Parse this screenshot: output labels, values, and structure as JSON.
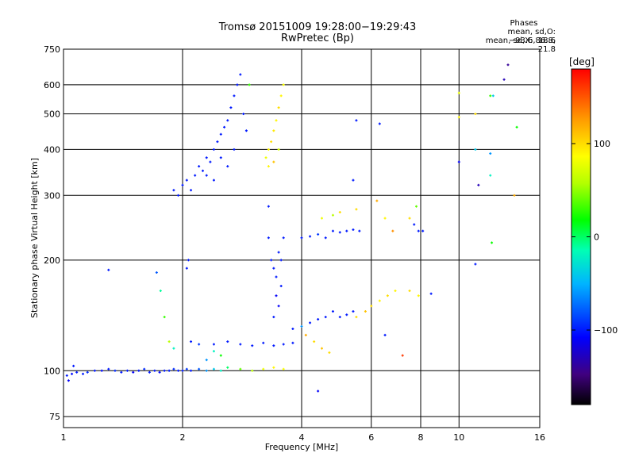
{
  "chart_data": {
    "type": "scatter",
    "title": "Tromsø 20151009 19:28:00−19:29:43",
    "subtitle": "RwPretec (Bp)",
    "xlabel": "Frequency [MHz]",
    "ylabel": "Stationary phase Virtual Height [km]",
    "x_scale": "log",
    "y_scale": "log",
    "xlim": [
      1,
      16
    ],
    "ylim": [
      70,
      750
    ],
    "x_ticks": [
      1,
      2,
      4,
      6,
      8,
      10,
      16
    ],
    "x_tick_labels": [
      "1",
      "2",
      "4",
      "6",
      "8",
      "10",
      "16"
    ],
    "y_ticks": [
      75,
      100,
      200,
      300,
      400,
      500,
      600,
      750
    ],
    "y_tick_labels": [
      "75",
      "100",
      "200",
      "300",
      "400",
      "500",
      "600",
      "750"
    ],
    "grid": true,
    "phase_box": {
      "title": "Phases",
      "line_o": "mean, sd,O: −93.6, 18.6",
      "line_x": "mean, sd,X:  86.8, 21.8"
    },
    "colorbar": {
      "label": "[deg]",
      "range": [
        -180,
        180
      ],
      "ticks": [
        100,
        0,
        -100
      ],
      "tick_labels": [
        "100",
        "0",
        "−100"
      ],
      "colormap": "rainbow"
    },
    "series": [
      {
        "values": [
          {
            "x": 1.02,
            "y": 97,
            "p": -100
          },
          {
            "x": 1.05,
            "y": 98,
            "p": -105
          },
          {
            "x": 1.08,
            "y": 99,
            "p": -100
          },
          {
            "x": 1.12,
            "y": 98,
            "p": -100
          },
          {
            "x": 1.15,
            "y": 99,
            "p": -95
          },
          {
            "x": 1.2,
            "y": 100,
            "p": -100
          },
          {
            "x": 1.25,
            "y": 100,
            "p": -105
          },
          {
            "x": 1.3,
            "y": 101,
            "p": -100
          },
          {
            "x": 1.35,
            "y": 100,
            "p": -95
          },
          {
            "x": 1.4,
            "y": 99,
            "p": -100
          },
          {
            "x": 1.45,
            "y": 100,
            "p": -100
          },
          {
            "x": 1.5,
            "y": 99,
            "p": -110
          },
          {
            "x": 1.55,
            "y": 100,
            "p": -100
          },
          {
            "x": 1.6,
            "y": 101,
            "p": -95
          },
          {
            "x": 1.65,
            "y": 99,
            "p": -100
          },
          {
            "x": 1.7,
            "y": 100,
            "p": -100
          },
          {
            "x": 1.75,
            "y": 99,
            "p": -105
          },
          {
            "x": 1.8,
            "y": 100,
            "p": -100
          },
          {
            "x": 1.85,
            "y": 100,
            "p": -100
          },
          {
            "x": 1.9,
            "y": 101,
            "p": -95
          },
          {
            "x": 1.95,
            "y": 100,
            "p": -100
          },
          {
            "x": 2.0,
            "y": 100,
            "p": -100
          },
          {
            "x": 2.05,
            "y": 101,
            "p": -90
          },
          {
            "x": 2.1,
            "y": 100,
            "p": -100
          },
          {
            "x": 2.2,
            "y": 101,
            "p": -80
          },
          {
            "x": 2.3,
            "y": 100,
            "p": -60
          },
          {
            "x": 2.4,
            "y": 101,
            "p": -40
          },
          {
            "x": 2.5,
            "y": 100,
            "p": -20
          },
          {
            "x": 2.6,
            "y": 102,
            "p": 0
          },
          {
            "x": 2.8,
            "y": 101,
            "p": 40
          },
          {
            "x": 3.0,
            "y": 100,
            "p": 60
          },
          {
            "x": 3.2,
            "y": 101,
            "p": 80
          },
          {
            "x": 3.4,
            "y": 102,
            "p": 90
          },
          {
            "x": 3.6,
            "y": 101,
            "p": 85
          },
          {
            "x": 1.03,
            "y": 94,
            "p": -110
          },
          {
            "x": 1.06,
            "y": 103,
            "p": -100
          },
          {
            "x": 1.3,
            "y": 188,
            "p": -100
          },
          {
            "x": 1.72,
            "y": 185,
            "p": -80
          },
          {
            "x": 1.76,
            "y": 165,
            "p": -10
          },
          {
            "x": 1.8,
            "y": 140,
            "p": 30
          },
          {
            "x": 1.85,
            "y": 120,
            "p": 60
          },
          {
            "x": 1.9,
            "y": 115,
            "p": -20
          },
          {
            "x": 2.05,
            "y": 190,
            "p": -100
          },
          {
            "x": 2.07,
            "y": 200,
            "p": -100
          },
          {
            "x": 2.1,
            "y": 120,
            "p": -100
          },
          {
            "x": 2.2,
            "y": 118,
            "p": -90
          },
          {
            "x": 2.4,
            "y": 118,
            "p": -100
          },
          {
            "x": 2.6,
            "y": 120,
            "p": -100
          },
          {
            "x": 2.8,
            "y": 118,
            "p": -100
          },
          {
            "x": 3.0,
            "y": 117,
            "p": -100
          },
          {
            "x": 3.2,
            "y": 119,
            "p": -100
          },
          {
            "x": 3.4,
            "y": 117,
            "p": -100
          },
          {
            "x": 3.6,
            "y": 118,
            "p": -100
          },
          {
            "x": 3.8,
            "y": 119,
            "p": -100
          },
          {
            "x": 2.4,
            "y": 113,
            "p": -20
          },
          {
            "x": 2.5,
            "y": 110,
            "p": 20
          },
          {
            "x": 2.3,
            "y": 107,
            "p": -60
          },
          {
            "x": 1.9,
            "y": 310,
            "p": -100
          },
          {
            "x": 1.95,
            "y": 300,
            "p": -100
          },
          {
            "x": 2.0,
            "y": 320,
            "p": -100
          },
          {
            "x": 2.05,
            "y": 330,
            "p": -100
          },
          {
            "x": 2.1,
            "y": 310,
            "p": -100
          },
          {
            "x": 2.15,
            "y": 340,
            "p": -100
          },
          {
            "x": 2.2,
            "y": 360,
            "p": -100
          },
          {
            "x": 2.25,
            "y": 350,
            "p": -100
          },
          {
            "x": 2.3,
            "y": 380,
            "p": -100
          },
          {
            "x": 2.35,
            "y": 370,
            "p": -100
          },
          {
            "x": 2.4,
            "y": 400,
            "p": -100
          },
          {
            "x": 2.45,
            "y": 420,
            "p": -100
          },
          {
            "x": 2.5,
            "y": 440,
            "p": -100
          },
          {
            "x": 2.55,
            "y": 460,
            "p": -100
          },
          {
            "x": 2.6,
            "y": 480,
            "p": -100
          },
          {
            "x": 2.65,
            "y": 520,
            "p": -100
          },
          {
            "x": 2.7,
            "y": 560,
            "p": -100
          },
          {
            "x": 2.75,
            "y": 600,
            "p": -100
          },
          {
            "x": 2.8,
            "y": 640,
            "p": -100
          },
          {
            "x": 2.85,
            "y": 500,
            "p": -100
          },
          {
            "x": 2.9,
            "y": 450,
            "p": -100
          },
          {
            "x": 2.7,
            "y": 400,
            "p": -100
          },
          {
            "x": 2.6,
            "y": 360,
            "p": -100
          },
          {
            "x": 2.5,
            "y": 380,
            "p": -100
          },
          {
            "x": 2.4,
            "y": 330,
            "p": -100
          },
          {
            "x": 2.3,
            "y": 340,
            "p": -100
          },
          {
            "x": 2.95,
            "y": 600,
            "p": 30
          },
          {
            "x": 3.25,
            "y": 380,
            "p": 80
          },
          {
            "x": 3.3,
            "y": 400,
            "p": 90
          },
          {
            "x": 3.35,
            "y": 420,
            "p": 100
          },
          {
            "x": 3.4,
            "y": 450,
            "p": 95
          },
          {
            "x": 3.45,
            "y": 480,
            "p": 90
          },
          {
            "x": 3.5,
            "y": 520,
            "p": 100
          },
          {
            "x": 3.55,
            "y": 560,
            "p": 90
          },
          {
            "x": 3.6,
            "y": 600,
            "p": 85
          },
          {
            "x": 3.5,
            "y": 400,
            "p": 70
          },
          {
            "x": 3.4,
            "y": 370,
            "p": 110
          },
          {
            "x": 3.3,
            "y": 360,
            "p": 90
          },
          {
            "x": 3.3,
            "y": 280,
            "p": -100
          },
          {
            "x": 3.3,
            "y": 230,
            "p": -100
          },
          {
            "x": 3.35,
            "y": 200,
            "p": -100
          },
          {
            "x": 3.4,
            "y": 190,
            "p": -100
          },
          {
            "x": 3.45,
            "y": 180,
            "p": -100
          },
          {
            "x": 3.5,
            "y": 210,
            "p": -100
          },
          {
            "x": 3.55,
            "y": 170,
            "p": -100
          },
          {
            "x": 3.6,
            "y": 230,
            "p": -100
          },
          {
            "x": 3.45,
            "y": 160,
            "p": -110
          },
          {
            "x": 3.55,
            "y": 200,
            "p": -100
          },
          {
            "x": 3.4,
            "y": 140,
            "p": -100
          },
          {
            "x": 3.5,
            "y": 150,
            "p": -110
          },
          {
            "x": 4.0,
            "y": 230,
            "p": -100
          },
          {
            "x": 4.2,
            "y": 232,
            "p": -100
          },
          {
            "x": 4.4,
            "y": 235,
            "p": -90
          },
          {
            "x": 4.6,
            "y": 230,
            "p": -100
          },
          {
            "x": 4.8,
            "y": 240,
            "p": -100
          },
          {
            "x": 5.0,
            "y": 238,
            "p": -100
          },
          {
            "x": 5.2,
            "y": 240,
            "p": -100
          },
          {
            "x": 5.4,
            "y": 242,
            "p": -100
          },
          {
            "x": 5.6,
            "y": 240,
            "p": -100
          },
          {
            "x": 4.5,
            "y": 260,
            "p": 80
          },
          {
            "x": 4.8,
            "y": 265,
            "p": 60
          },
          {
            "x": 5.0,
            "y": 270,
            "p": 100
          },
          {
            "x": 5.5,
            "y": 275,
            "p": 100
          },
          {
            "x": 6.2,
            "y": 290,
            "p": 120
          },
          {
            "x": 6.5,
            "y": 260,
            "p": 90
          },
          {
            "x": 6.8,
            "y": 240,
            "p": 130
          },
          {
            "x": 7.5,
            "y": 260,
            "p": 100
          },
          {
            "x": 7.8,
            "y": 280,
            "p": 40
          },
          {
            "x": 7.7,
            "y": 250,
            "p": -100
          },
          {
            "x": 7.9,
            "y": 240,
            "p": -100
          },
          {
            "x": 8.1,
            "y": 240,
            "p": -100
          },
          {
            "x": 3.8,
            "y": 130,
            "p": -100
          },
          {
            "x": 4.0,
            "y": 132,
            "p": -60
          },
          {
            "x": 4.2,
            "y": 135,
            "p": -100
          },
          {
            "x": 4.4,
            "y": 138,
            "p": -100
          },
          {
            "x": 4.6,
            "y": 140,
            "p": -100
          },
          {
            "x": 4.8,
            "y": 145,
            "p": -100
          },
          {
            "x": 5.0,
            "y": 140,
            "p": -100
          },
          {
            "x": 5.2,
            "y": 142,
            "p": -100
          },
          {
            "x": 5.4,
            "y": 145,
            "p": -100
          },
          {
            "x": 4.1,
            "y": 125,
            "p": 120
          },
          {
            "x": 4.3,
            "y": 120,
            "p": 100
          },
          {
            "x": 4.5,
            "y": 115,
            "p": 110
          },
          {
            "x": 4.7,
            "y": 112,
            "p": 100
          },
          {
            "x": 5.5,
            "y": 140,
            "p": 100
          },
          {
            "x": 5.8,
            "y": 145,
            "p": 110
          },
          {
            "x": 6.0,
            "y": 150,
            "p": 100
          },
          {
            "x": 6.3,
            "y": 155,
            "p": 90
          },
          {
            "x": 6.6,
            "y": 160,
            "p": 100
          },
          {
            "x": 6.9,
            "y": 165,
            "p": 90
          },
          {
            "x": 7.5,
            "y": 165,
            "p": 100
          },
          {
            "x": 7.9,
            "y": 160,
            "p": 90
          },
          {
            "x": 8.5,
            "y": 162,
            "p": -100
          },
          {
            "x": 6.5,
            "y": 125,
            "p": -100
          },
          {
            "x": 7.2,
            "y": 110,
            "p": 160
          },
          {
            "x": 5.5,
            "y": 480,
            "p": -100
          },
          {
            "x": 5.4,
            "y": 330,
            "p": -100
          },
          {
            "x": 6.3,
            "y": 470,
            "p": -100
          },
          {
            "x": 10.0,
            "y": 570,
            "p": 80
          },
          {
            "x": 10.0,
            "y": 490,
            "p": 90
          },
          {
            "x": 10.0,
            "y": 370,
            "p": -110
          },
          {
            "x": 11.0,
            "y": 500,
            "p": 100
          },
          {
            "x": 11.0,
            "y": 400,
            "p": -40
          },
          {
            "x": 11.2,
            "y": 320,
            "p": -130
          },
          {
            "x": 12.0,
            "y": 560,
            "p": 30
          },
          {
            "x": 12.0,
            "y": 390,
            "p": -60
          },
          {
            "x": 12.0,
            "y": 340,
            "p": -20
          },
          {
            "x": 12.2,
            "y": 560,
            "p": -40
          },
          {
            "x": 13.0,
            "y": 620,
            "p": -130
          },
          {
            "x": 13.3,
            "y": 680,
            "p": -140
          },
          {
            "x": 14.0,
            "y": 460,
            "p": 20
          },
          {
            "x": 13.8,
            "y": 300,
            "p": 120
          },
          {
            "x": 11.0,
            "y": 195,
            "p": -100
          },
          {
            "x": 12.1,
            "y": 223,
            "p": 20
          },
          {
            "x": 4.4,
            "y": 88,
            "p": -110
          }
        ]
      }
    ]
  }
}
